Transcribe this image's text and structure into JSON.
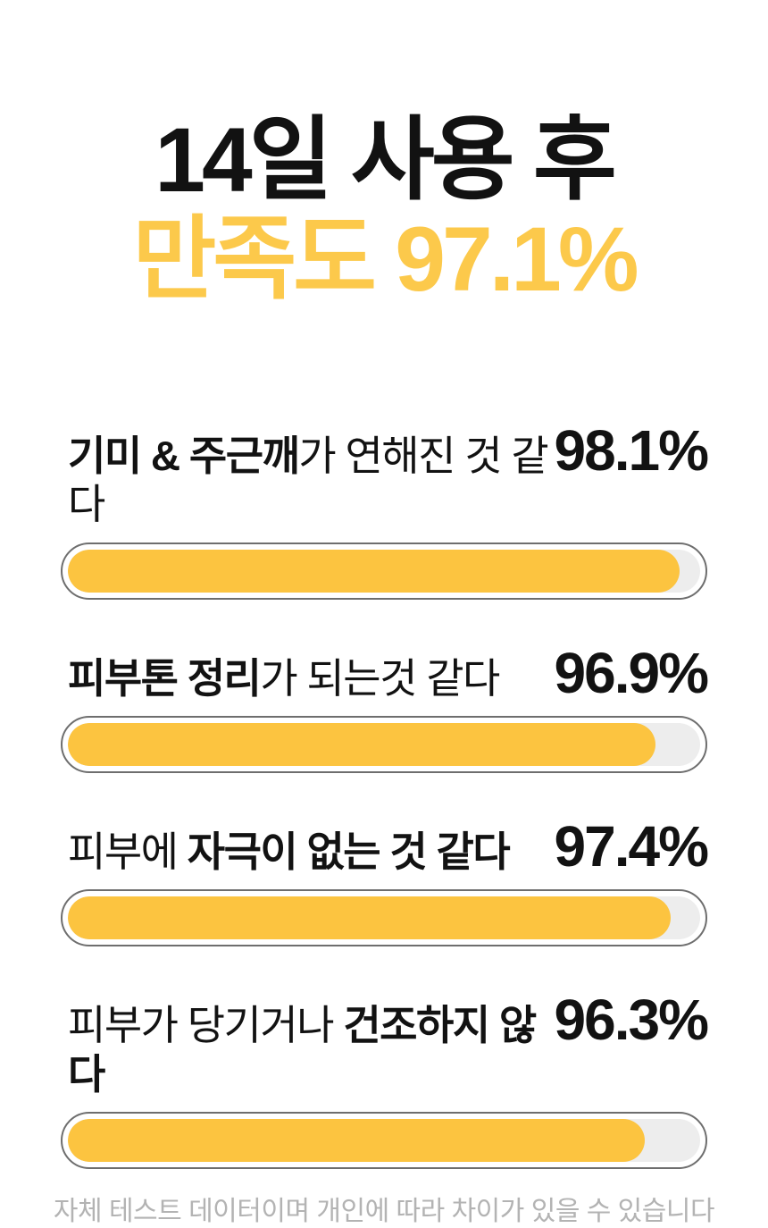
{
  "header": {
    "title_line1": "14일 사용 후",
    "title_line2": "만족도 97.1%"
  },
  "rows": [
    {
      "label_pre": "",
      "label_bold": "기미 & 주근깨",
      "label_post": "가 연해진 것 같다",
      "value_label": "98.1%",
      "value_pct": 98.1,
      "bar_fill_pct": 96.8
    },
    {
      "label_pre": "",
      "label_bold": "피부톤 정리",
      "label_post": "가 되는것 같다",
      "value_label": "96.9%",
      "value_pct": 96.9,
      "bar_fill_pct": 92.9
    },
    {
      "label_pre": "피부에 ",
      "label_bold": "자극이 없는 것 같다",
      "label_post": "",
      "value_label": "97.4%",
      "value_pct": 97.4,
      "bar_fill_pct": 95.3
    },
    {
      "label_pre": "피부가 당기거나 ",
      "label_bold": "건조하지 않다",
      "label_post": "",
      "value_label": "96.3%",
      "value_pct": 96.3,
      "bar_fill_pct": 91.3
    }
  ],
  "footer": {
    "disclaimer": "자체 테스트 데이터이며 개인에 따라 차이가 있을 수 있습니다"
  },
  "colors": {
    "accent_yellow": "#FCC94B",
    "bar_yellow": "#FCC440",
    "bar_track": "#EDEDED",
    "bar_border": "#6E6E6E",
    "text_black": "#121212",
    "footer_gray": "#B3B3B3"
  },
  "chart_data": {
    "type": "bar",
    "orientation": "horizontal",
    "title": "14일 사용 후 만족도 97.1%",
    "overall_satisfaction_pct": 97.1,
    "categories": [
      "기미 & 주근깨가 연해진 것 같다",
      "피부톤 정리가 되는것 같다",
      "피부에 자극이 없는 것 같다",
      "피부가 당기거나 건조하지 않다"
    ],
    "values": [
      98.1,
      96.9,
      97.4,
      96.3
    ],
    "unit": "%",
    "xlim": [
      0,
      100
    ],
    "legend": false,
    "grid": false,
    "note": "자체 테스트 데이터이며 개인에 따라 차이가 있을 수 있습니다"
  }
}
